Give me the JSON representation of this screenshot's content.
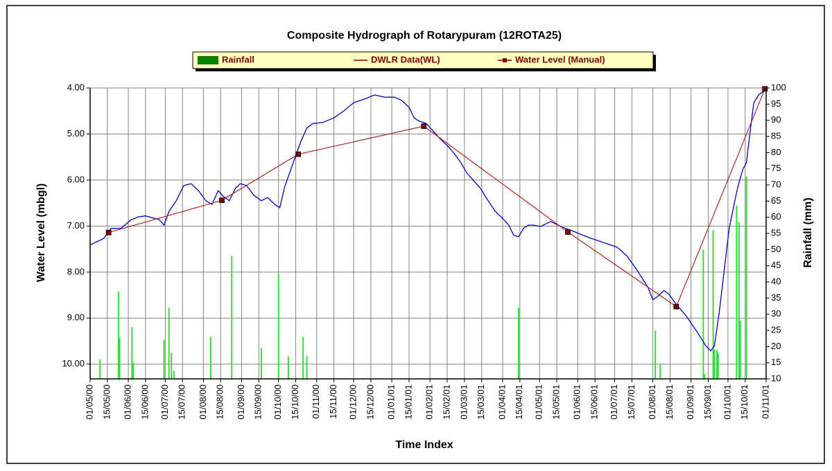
{
  "chart_data": {
    "type": "combo",
    "title": "Composite Hydrograph of Rotarypuram (12ROTA25)",
    "x_label": "Time Index",
    "y_label": "Water Level (mbgl)",
    "y2_label": "Rainfall (mm)",
    "y_inverted": true,
    "grid": true,
    "legend": "top",
    "xlim": [
      "2000-05-01",
      "2001-11-01"
    ],
    "xticks": [
      {
        "value": "2000-05-01",
        "label": "01/05/00"
      },
      {
        "value": "2000-05-15",
        "label": "15/05/00"
      },
      {
        "value": "2000-06-01",
        "label": "01/06/00"
      },
      {
        "value": "2000-06-15",
        "label": "15/06/00"
      },
      {
        "value": "2000-07-01",
        "label": "01/07/00"
      },
      {
        "value": "2000-07-15",
        "label": "15/07/00"
      },
      {
        "value": "2000-08-01",
        "label": "01/08/00"
      },
      {
        "value": "2000-08-15",
        "label": "15/08/00"
      },
      {
        "value": "2000-09-01",
        "label": "01/09/00"
      },
      {
        "value": "2000-09-15",
        "label": "15/09/00"
      },
      {
        "value": "2000-10-01",
        "label": "01/10/00"
      },
      {
        "value": "2000-10-15",
        "label": "15/10/00"
      },
      {
        "value": "2000-11-01",
        "label": "01/11/00"
      },
      {
        "value": "2000-11-15",
        "label": "15/11/00"
      },
      {
        "value": "2000-12-01",
        "label": "01/12/00"
      },
      {
        "value": "2000-12-15",
        "label": "15/12/00"
      },
      {
        "value": "2001-01-01",
        "label": "01/01/01"
      },
      {
        "value": "2001-01-15",
        "label": "15/01/01"
      },
      {
        "value": "2001-02-01",
        "label": "01/02/01"
      },
      {
        "value": "2001-02-15",
        "label": "15/02/01"
      },
      {
        "value": "2001-03-01",
        "label": "01/03/01"
      },
      {
        "value": "2001-03-15",
        "label": "15/03/01"
      },
      {
        "value": "2001-04-01",
        "label": "01/04/01"
      },
      {
        "value": "2001-04-15",
        "label": "15/04/01"
      },
      {
        "value": "2001-05-01",
        "label": "01/05/01"
      },
      {
        "value": "2001-05-15",
        "label": "15/05/01"
      },
      {
        "value": "2001-06-01",
        "label": "01/06/01"
      },
      {
        "value": "2001-06-15",
        "label": "15/06/01"
      },
      {
        "value": "2001-07-01",
        "label": "01/07/01"
      },
      {
        "value": "2001-07-15",
        "label": "15/07/01"
      },
      {
        "value": "2001-08-01",
        "label": "01/08/01"
      },
      {
        "value": "2001-08-15",
        "label": "15/08/01"
      },
      {
        "value": "2001-09-01",
        "label": "01/09/01"
      },
      {
        "value": "2001-09-15",
        "label": "15/09/01"
      },
      {
        "value": "2001-10-01",
        "label": "01/10/01"
      },
      {
        "value": "2001-10-15",
        "label": "15/10/01"
      },
      {
        "value": "2001-11-01",
        "label": "01/11/01"
      }
    ],
    "ylim": [
      4,
      10.32
    ],
    "yticks": [
      {
        "value": 4,
        "label": "4.00"
      },
      {
        "value": 5,
        "label": "5.00"
      },
      {
        "value": 6,
        "label": "6.00"
      },
      {
        "value": 7,
        "label": "7.00"
      },
      {
        "value": 8,
        "label": "8.00"
      },
      {
        "value": 9,
        "label": "9.00"
      },
      {
        "value": 10,
        "label": "10.00"
      }
    ],
    "y2lim": [
      10,
      100
    ],
    "y2ticks": [
      10,
      15,
      20,
      25,
      30,
      35,
      40,
      45,
      50,
      55,
      60,
      65,
      70,
      75,
      80,
      85,
      90,
      95,
      100
    ],
    "series": [
      {
        "name": "Rainfall",
        "type": "bar",
        "axis": "y2",
        "color": "#33dd33",
        "legend_color": "#008000",
        "x": [
          "2000-05-09",
          "2000-05-24",
          "2000-05-25",
          "2000-06-04",
          "2000-06-05",
          "2000-06-30",
          "2000-07-04",
          "2000-07-06",
          "2000-07-08",
          "2000-08-07",
          "2000-08-24",
          "2000-09-17",
          "2000-10-01",
          "2000-10-09",
          "2000-10-21",
          "2000-10-24",
          "2001-04-14",
          "2001-08-03",
          "2001-08-07",
          "2001-09-11",
          "2001-09-12",
          "2001-09-19",
          "2001-09-20",
          "2001-09-22",
          "2001-09-23",
          "2001-10-08",
          "2001-10-10",
          "2001-10-11",
          "2001-10-16"
        ],
        "values": [
          16,
          37,
          22.6,
          26,
          15,
          22,
          32,
          18,
          12.5,
          23,
          48,
          19.6,
          42.5,
          17,
          23,
          17,
          32,
          25,
          14.7,
          50,
          11.5,
          56,
          19,
          19,
          18,
          63.6,
          58.6,
          28,
          72.6
        ]
      },
      {
        "name": "DWLR Data(WL)",
        "type": "line",
        "axis": "y",
        "color": "#0000cc",
        "legend_color": "#800000",
        "x": [
          "2000-05-01",
          "2000-05-12",
          "2000-05-18",
          "2000-05-26",
          "2000-06-03",
          "2000-06-09",
          "2000-06-15",
          "2000-06-26",
          "2000-06-30",
          "2000-07-04",
          "2000-07-10",
          "2000-07-16",
          "2000-07-22",
          "2000-07-28",
          "2000-08-03",
          "2000-08-08",
          "2000-08-13",
          "2000-08-17",
          "2000-08-22",
          "2000-08-27",
          "2000-08-31",
          "2000-09-05",
          "2000-09-11",
          "2000-09-17",
          "2000-09-22",
          "2000-09-28",
          "2000-10-02",
          "2000-10-06",
          "2000-10-11",
          "2000-10-15",
          "2000-10-19",
          "2000-10-24",
          "2000-10-29",
          "2000-11-06",
          "2000-11-15",
          "2000-11-23",
          "2000-12-01",
          "2000-12-10",
          "2000-12-18",
          "2000-12-26",
          "2001-01-03",
          "2001-01-09",
          "2001-01-15",
          "2001-01-19",
          "2001-01-23",
          "2001-01-29",
          "2001-02-03",
          "2001-02-09",
          "2001-02-15",
          "2001-02-20",
          "2001-02-26",
          "2001-03-03",
          "2001-03-09",
          "2001-03-14",
          "2001-03-20",
          "2001-03-26",
          "2001-04-01",
          "2001-04-06",
          "2001-04-10",
          "2001-04-14",
          "2001-04-18",
          "2001-04-22",
          "2001-04-26",
          "2001-05-02",
          "2001-05-10",
          "2001-05-19",
          "2001-05-30",
          "2001-06-10",
          "2001-06-21",
          "2001-07-03",
          "2001-07-11",
          "2001-07-19",
          "2001-07-28",
          "2001-08-01",
          "2001-08-05",
          "2001-08-10",
          "2001-08-14",
          "2001-08-20",
          "2001-08-28",
          "2001-09-06",
          "2001-09-13",
          "2001-09-17",
          "2001-09-20",
          "2001-09-24",
          "2001-09-28",
          "2001-10-02",
          "2001-10-06",
          "2001-10-09",
          "2001-10-13",
          "2001-10-16",
          "2001-10-19",
          "2001-10-22",
          "2001-10-26",
          "2001-10-31"
        ],
        "values": [
          7.41,
          7.27,
          7.05,
          7.05,
          6.87,
          6.8,
          6.78,
          6.86,
          6.98,
          6.68,
          6.45,
          6.12,
          6.08,
          6.23,
          6.45,
          6.53,
          6.23,
          6.35,
          6.45,
          6.18,
          6.08,
          6.12,
          6.33,
          6.45,
          6.38,
          6.53,
          6.6,
          6.15,
          5.77,
          5.47,
          5.17,
          4.87,
          4.77,
          4.75,
          4.65,
          4.5,
          4.32,
          4.24,
          4.15,
          4.2,
          4.2,
          4.27,
          4.42,
          4.65,
          4.72,
          4.77,
          4.92,
          5.1,
          5.25,
          5.4,
          5.62,
          5.85,
          6.03,
          6.18,
          6.44,
          6.68,
          6.83,
          6.98,
          7.2,
          7.23,
          7.05,
          6.98,
          6.98,
          7.01,
          6.9,
          7.02,
          7.13,
          7.25,
          7.35,
          7.46,
          7.65,
          7.95,
          8.33,
          8.6,
          8.53,
          8.4,
          8.48,
          8.7,
          8.95,
          9.3,
          9.6,
          9.71,
          9.6,
          8.86,
          7.95,
          7.05,
          6.53,
          6.15,
          5.77,
          5.62,
          4.95,
          4.32,
          4.15,
          4.05
        ]
      },
      {
        "name": "Water Level (Manual)",
        "type": "line",
        "axis": "y",
        "color": "#b22222",
        "marker": "square",
        "marker_color": "#800000",
        "legend_color": "#800000",
        "x": [
          "2000-05-16",
          "2000-08-16",
          "2000-10-17",
          "2001-01-27",
          "2001-05-24",
          "2001-08-20",
          "2001-10-31"
        ],
        "values": [
          7.14,
          6.44,
          5.44,
          4.83,
          7.13,
          8.75,
          4.02
        ]
      }
    ]
  }
}
